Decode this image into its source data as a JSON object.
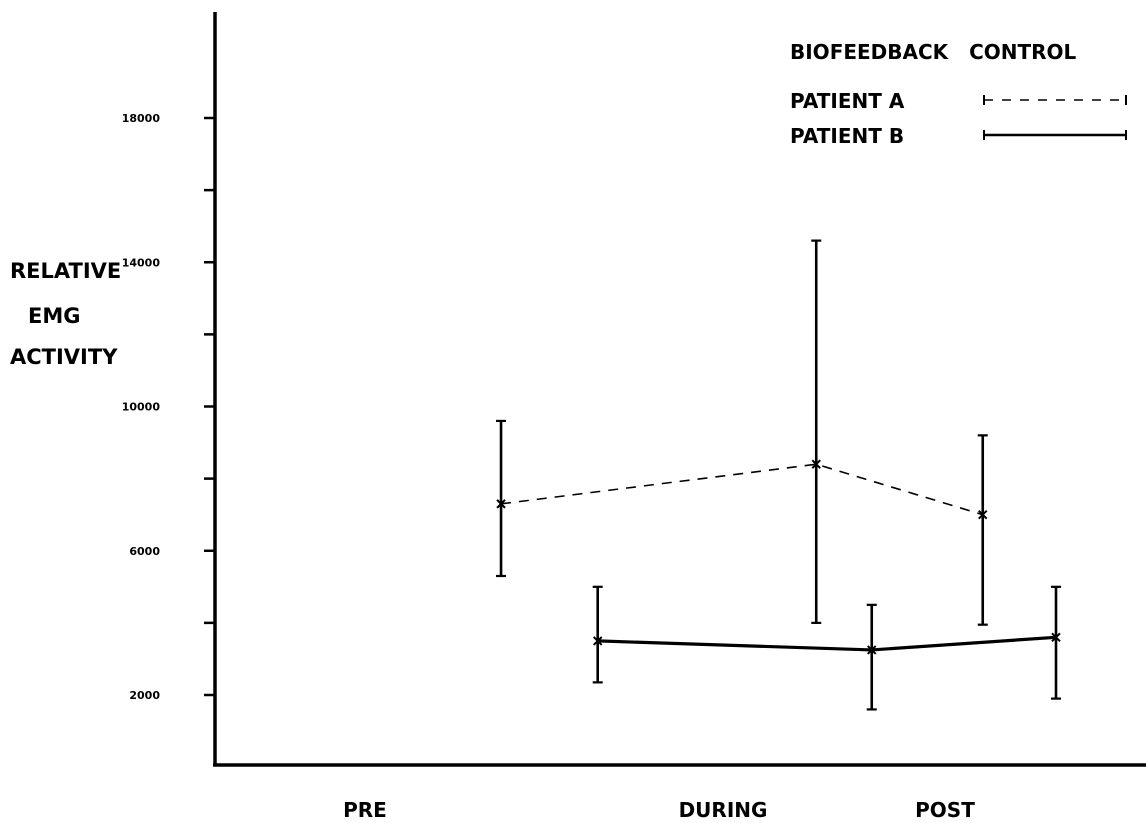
{
  "chart_data": {
    "type": "line",
    "title": "",
    "ylabel": [
      "RELATIVE",
      "EMG",
      "ACTIVITY"
    ],
    "xlabel": "",
    "categories": [
      "PRE",
      "DURING",
      "POST"
    ],
    "ylim": [
      0,
      20000
    ],
    "yticks": [
      2000,
      6000,
      10000,
      14000,
      18000
    ],
    "yticks_unlabeled": [
      4000,
      8000,
      12000,
      16000
    ],
    "legend": {
      "title": "BIOFEEDBACK   CONTROL",
      "placement": "top-right"
    },
    "grid": false,
    "series": [
      {
        "name": "PATIENT   A",
        "style": "dashed",
        "color": "#000000",
        "points": [
          {
            "x": 0.38,
            "y": 7300,
            "low": 5300,
            "high": 9600
          },
          {
            "x": 1.42,
            "y": 8400,
            "low": 4000,
            "high": 14600
          },
          {
            "x": 2.17,
            "y": 7000,
            "low": 3950,
            "high": 9200
          }
        ]
      },
      {
        "name": "PATIENT   B",
        "style": "solid",
        "color": "#000000",
        "points": [
          {
            "x": 0.65,
            "y": 3500,
            "low": 2350,
            "high": 5000
          },
          {
            "x": 1.67,
            "y": 3250,
            "low": 1600,
            "high": 4500
          },
          {
            "x": 2.5,
            "y": 3600,
            "low": 1900,
            "high": 5000
          }
        ]
      }
    ]
  }
}
